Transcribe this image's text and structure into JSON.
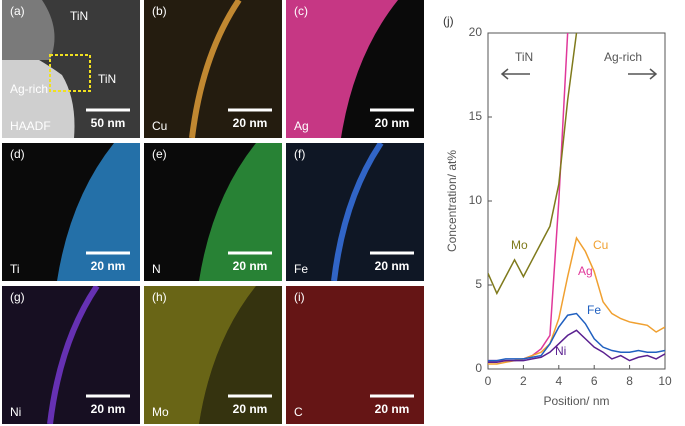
{
  "panels": [
    {
      "label": "(a)",
      "element": "HAADF",
      "scale_bar": "50 nm",
      "annotations": [
        "TiN",
        "Ag-rich",
        "TiN"
      ],
      "color": "#9a9a9a"
    },
    {
      "label": "(b)",
      "element": "Cu",
      "scale_bar": "20 nm",
      "color": "#e8a33a"
    },
    {
      "label": "(c)",
      "element": "Ag",
      "scale_bar": "20 nm",
      "color": "#e8409a"
    },
    {
      "label": "(d)",
      "element": "Ti",
      "scale_bar": "20 nm",
      "color": "#2a8ad0"
    },
    {
      "label": "(e)",
      "element": "N",
      "scale_bar": "20 nm",
      "color": "#2fa040"
    },
    {
      "label": "(f)",
      "element": "Fe",
      "scale_bar": "20 nm",
      "color": "#3a78f0"
    },
    {
      "label": "(g)",
      "element": "Ni",
      "scale_bar": "20 nm",
      "color": "#7a3ad8"
    },
    {
      "label": "(h)",
      "element": "Mo",
      "scale_bar": "20 nm",
      "color": "#b8b020"
    },
    {
      "label": "(i)",
      "element": "C",
      "scale_bar": "20 nm",
      "color": "#c02020"
    }
  ],
  "chart_data": {
    "type": "line",
    "panel_label": "(j)",
    "x_label": "Position/ nm",
    "y_label": "Concentration/ at%",
    "annotations": [
      "TiN",
      "Ag-rich"
    ],
    "x": [
      0,
      0.5,
      1,
      1.5,
      2,
      2.5,
      3,
      3.5,
      4,
      4.5,
      5,
      5.5,
      6,
      6.5,
      7,
      7.5,
      8,
      8.5,
      9,
      9.5,
      10
    ],
    "series": [
      {
        "name": "Ag",
        "color": "#e0389a",
        "values": [
          0.5,
          0.5,
          0.5,
          0.5,
          0.6,
          0.8,
          1.2,
          2,
          10,
          20,
          null,
          null,
          null,
          null,
          null,
          null,
          null,
          null,
          null,
          null,
          null
        ]
      },
      {
        "name": "Mo",
        "color": "#7f7a1c",
        "values": [
          5.7,
          4.5,
          5.5,
          6.5,
          5.5,
          6.5,
          7.5,
          8.5,
          11,
          16,
          20,
          null,
          null,
          null,
          null,
          null,
          null,
          null,
          null,
          null,
          null
        ]
      },
      {
        "name": "Cu",
        "color": "#f0a030",
        "values": [
          0.3,
          0.3,
          0.4,
          0.5,
          0.6,
          0.8,
          1,
          1.5,
          3,
          5.5,
          7.8,
          7,
          5.8,
          4,
          3.3,
          3,
          2.8,
          2.7,
          2.6,
          2.2,
          2.5
        ]
      },
      {
        "name": "Fe",
        "color": "#2060c0",
        "values": [
          0.5,
          0.5,
          0.6,
          0.6,
          0.6,
          0.7,
          0.8,
          1.5,
          2.5,
          3.2,
          3.3,
          2.7,
          1.8,
          1.3,
          1.1,
          1,
          1,
          1.1,
          1,
          1,
          1.1
        ]
      },
      {
        "name": "Ni",
        "color": "#5a2090",
        "values": [
          0.4,
          0.4,
          0.5,
          0.5,
          0.5,
          0.6,
          0.7,
          1,
          1.5,
          2,
          2.3,
          1.8,
          1.3,
          1,
          0.6,
          0.8,
          0.5,
          0.7,
          0.8,
          0.6,
          0.9
        ]
      }
    ],
    "xlim": [
      0,
      10
    ],
    "ylim": [
      0,
      20
    ],
    "xticks": [
      0,
      2,
      4,
      6,
      8,
      10
    ],
    "yticks": [
      0,
      5,
      10,
      15,
      20
    ]
  }
}
